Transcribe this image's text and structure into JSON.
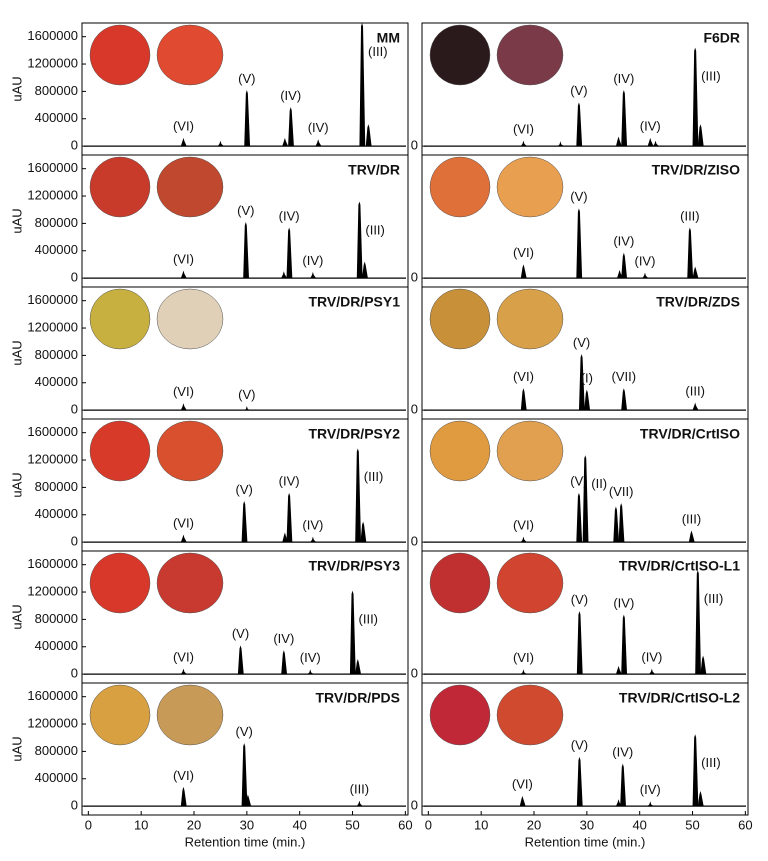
{
  "chart_data": [
    {
      "type": "line",
      "title": "MM",
      "y_label": "uAU",
      "xlim": [
        -1.2,
        60.5
      ],
      "ylim": [
        -130000,
        1800000
      ],
      "yticks": [
        0,
        400000,
        800000,
        1200000,
        1600000
      ],
      "x": [
        18,
        25,
        30,
        37.2,
        38.3,
        43.5,
        51.8,
        53
      ],
      "values": [
        100000,
        60000,
        800000,
        100000,
        550000,
        80000,
        1780000,
        300000
      ],
      "labels": [
        "(VI)",
        null,
        "(V)",
        null,
        "(IV)",
        "(IV)",
        "(III)",
        null
      ]
    },
    {
      "type": "line",
      "title": "F6DR",
      "xlim": [
        -1.2,
        60.5
      ],
      "ylim": [
        -130000,
        1800000
      ],
      "yticks": [
        0
      ],
      "x": [
        18,
        25,
        28.5,
        36,
        37,
        42,
        43,
        50.5,
        51.5
      ],
      "values": [
        60000,
        50000,
        620000,
        120000,
        800000,
        100000,
        60000,
        1420000,
        300000
      ],
      "labels": [
        "(VI)",
        null,
        "(V)",
        null,
        "(IV)",
        "(IV)",
        null,
        "(III)",
        null
      ]
    },
    {
      "type": "line",
      "title": "TRV/DR",
      "y_label": "uAU",
      "xlim": [
        -1.2,
        60.5
      ],
      "ylim": [
        -130000,
        1800000
      ],
      "yticks": [
        0,
        400000,
        800000,
        1200000,
        1600000
      ],
      "x": [
        18,
        29.8,
        37,
        38,
        42.5,
        51.3,
        52.3
      ],
      "values": [
        90000,
        800000,
        80000,
        720000,
        70000,
        1100000,
        220000
      ],
      "labels": [
        "(VI)",
        "(V)",
        null,
        "(IV)",
        "(IV)",
        "(III)",
        null
      ]
    },
    {
      "type": "line",
      "title": "TRV/DR/ZISO",
      "xlim": [
        -1.2,
        60.5
      ],
      "ylim": [
        -130000,
        1800000
      ],
      "yticks": [
        0
      ],
      "x": [
        18,
        28.5,
        36.2,
        37,
        41,
        49.5,
        50.5
      ],
      "values": [
        180000,
        1000000,
        100000,
        350000,
        60000,
        720000,
        150000
      ],
      "labels": [
        "(VI)",
        "(V)",
        null,
        "(IV)",
        "(IV)",
        "(III)",
        null
      ]
    },
    {
      "type": "line",
      "title": "TRV/DR/PSY1",
      "y_label": "uAU",
      "xlim": [
        -1.2,
        60.5
      ],
      "ylim": [
        -130000,
        1800000
      ],
      "yticks": [
        0,
        400000,
        800000,
        1200000,
        1600000
      ],
      "x": [
        18,
        30
      ],
      "values": [
        80000,
        40000
      ],
      "labels": [
        "(VI)",
        "(V)"
      ]
    },
    {
      "type": "line",
      "title": "TRV/DR/ZDS",
      "xlim": [
        -1.2,
        60.5
      ],
      "ylim": [
        -130000,
        1800000
      ],
      "yticks": [
        0
      ],
      "x": [
        18,
        29,
        30,
        37,
        50.5
      ],
      "values": [
        300000,
        800000,
        280000,
        300000,
        90000
      ],
      "labels": [
        "(VI)",
        "(V)",
        "(I)",
        "(VII)",
        "(III)"
      ]
    },
    {
      "type": "line",
      "title": "TRV/DR/PSY2",
      "y_label": "uAU",
      "xlim": [
        -1.2,
        60.5
      ],
      "ylim": [
        -130000,
        1800000
      ],
      "yticks": [
        0,
        400000,
        800000,
        1200000,
        1600000
      ],
      "x": [
        18,
        29.5,
        37.2,
        38,
        42.5,
        51,
        52
      ],
      "values": [
        90000,
        580000,
        120000,
        700000,
        60000,
        1350000,
        280000
      ],
      "labels": [
        "(VI)",
        "(V)",
        null,
        "(IV)",
        "(IV)",
        "(III)",
        null
      ]
    },
    {
      "type": "line",
      "title": "TRV/DR/CrtISO",
      "xlim": [
        -1.2,
        60.5
      ],
      "ylim": [
        -130000,
        1800000
      ],
      "yticks": [
        0
      ],
      "x": [
        18,
        28.5,
        29.7,
        35.5,
        36.5,
        49.8
      ],
      "values": [
        60000,
        700000,
        1250000,
        500000,
        550000,
        150000
      ],
      "labels": [
        "(VI)",
        "(V)",
        "(II)",
        null,
        "(VII)",
        "(III)"
      ]
    },
    {
      "type": "line",
      "title": "TRV/DR/PSY3",
      "y_label": "uAU",
      "xlim": [
        -1.2,
        60.5
      ],
      "ylim": [
        -130000,
        1800000
      ],
      "yticks": [
        0,
        400000,
        800000,
        1200000,
        1600000
      ],
      "x": [
        18,
        28.8,
        37,
        42,
        50,
        51
      ],
      "values": [
        60000,
        400000,
        330000,
        50000,
        1200000,
        200000
      ],
      "labels": [
        "(VI)",
        "(V)",
        "(IV)",
        "(IV)",
        "(III)",
        null
      ]
    },
    {
      "type": "line",
      "title": "TRV/DR/CrtISO-L1",
      "xlim": [
        -1.2,
        60.5
      ],
      "ylim": [
        -130000,
        1800000
      ],
      "yticks": [
        0
      ],
      "x": [
        18,
        28.6,
        36,
        37,
        42.3,
        51,
        52
      ],
      "values": [
        50000,
        900000,
        100000,
        850000,
        60000,
        1500000,
        250000
      ],
      "labels": [
        "(VI)",
        "(V)",
        null,
        "(IV)",
        "(IV)",
        "(III)",
        null
      ]
    },
    {
      "type": "line",
      "title": "TRV/DR/PDS",
      "y_label": "uAU",
      "x_label": "Retention time (min.)",
      "xlim": [
        -1.2,
        60.5
      ],
      "ylim": [
        -130000,
        1800000
      ],
      "yticks": [
        0,
        400000,
        800000,
        1200000,
        1600000
      ],
      "xticks": [
        0,
        10,
        20,
        30,
        40,
        50,
        60
      ],
      "x": [
        18,
        29.5,
        30.2,
        51.3
      ],
      "values": [
        260000,
        900000,
        150000,
        60000
      ],
      "labels": [
        "(VI)",
        "(V)",
        null,
        "(III)"
      ]
    },
    {
      "type": "line",
      "title": "TRV/DR/CrtISO-L2",
      "x_label": "Retention time (min.)",
      "xlim": [
        -1.2,
        60.5
      ],
      "ylim": [
        -130000,
        1800000
      ],
      "yticks": [
        0
      ],
      "xticks": [
        0,
        10,
        20,
        30,
        40,
        50,
        60
      ],
      "x": [
        17.8,
        28.6,
        36,
        36.8,
        42,
        50.5,
        51.5
      ],
      "values": [
        130000,
        700000,
        80000,
        600000,
        50000,
        1030000,
        200000
      ],
      "labels": [
        "(VI)",
        "(V)",
        null,
        "(IV)",
        "(IV)",
        "(III)",
        null
      ]
    }
  ]
}
